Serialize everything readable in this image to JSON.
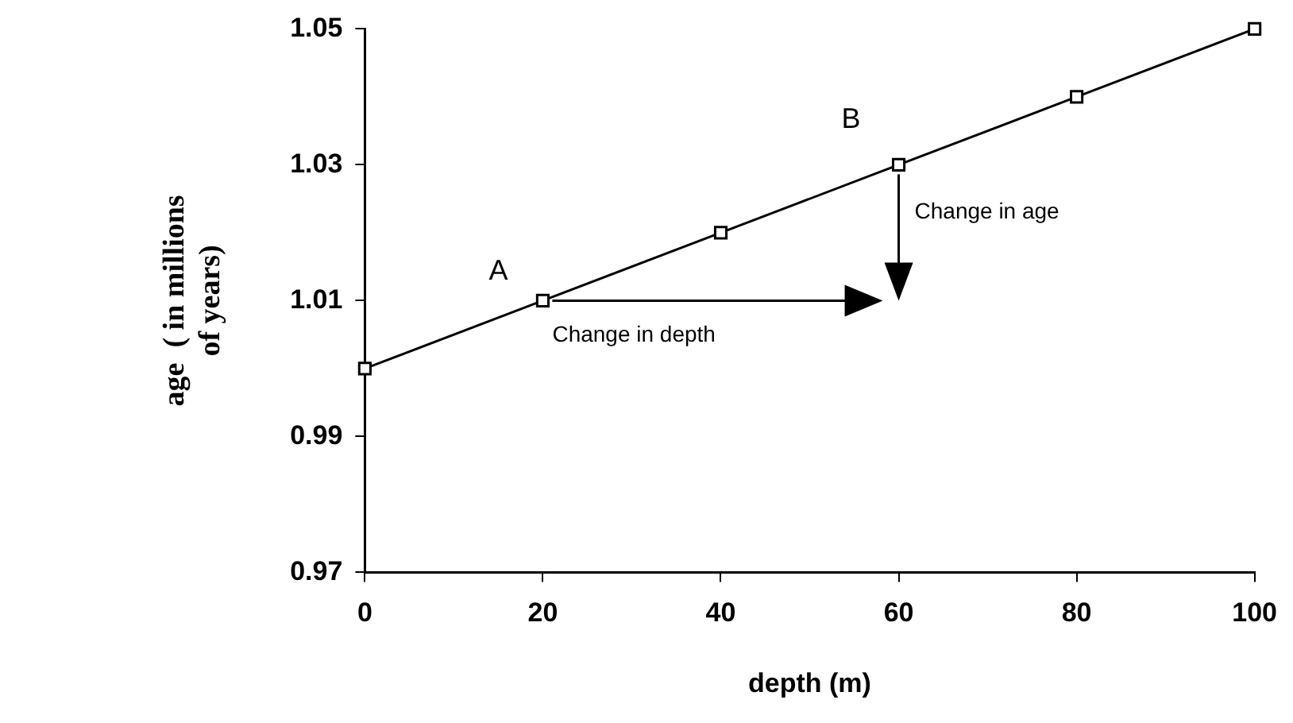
{
  "chart_data": {
    "type": "line",
    "xlabel": "depth (m)",
    "ylabel": "age  ( in millions\nof years)",
    "x": [
      0,
      20,
      40,
      60,
      80,
      100
    ],
    "values": [
      1.0,
      1.01,
      1.02,
      1.03,
      1.04,
      1.05
    ],
    "color": "#000000",
    "marker": "square",
    "line_style": "solid",
    "grid": false,
    "legend": false,
    "xlim": [
      0,
      100
    ],
    "xticks": [
      0,
      20,
      40,
      60,
      80,
      100
    ],
    "ylim": [
      0.97,
      1.05
    ],
    "yticks": [
      {
        "value": 0.97,
        "label": "0.97"
      },
      {
        "value": 0.99,
        "label": "0.99"
      },
      {
        "value": 1.01,
        "label": "1.01"
      },
      {
        "value": 1.03,
        "label": "1.03"
      },
      {
        "value": 1.05,
        "label": "1.05"
      }
    ],
    "annotations": [
      {
        "text": "A",
        "x": 20,
        "y": 1.01
      },
      {
        "text": "B",
        "x": 60,
        "y": 1.03
      },
      "Change in depth",
      "Change in age"
    ]
  }
}
